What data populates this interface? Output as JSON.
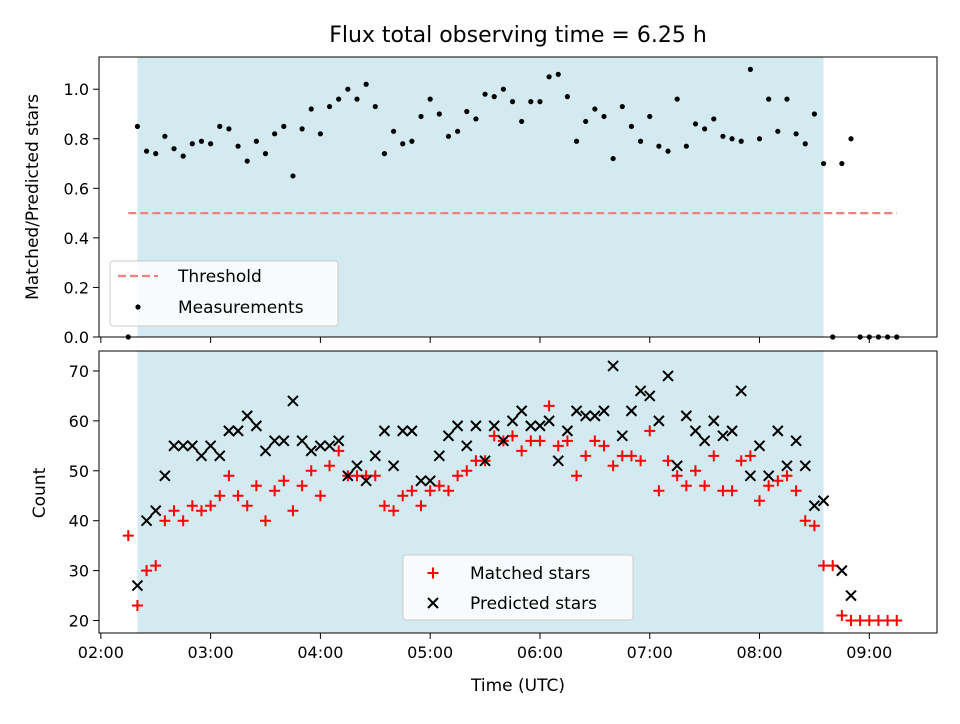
{
  "chart_data": [
    {
      "type": "scatter",
      "title": "Flux total observing time = 6.25 h",
      "xlabel": "",
      "ylabel": "Matched/Predicted stars",
      "xlim": [
        "01:59",
        "09:37"
      ],
      "ylim": [
        0,
        1.13
      ],
      "ytick_labels": [
        "0.0",
        "0.2",
        "0.4",
        "0.6",
        "0.8",
        "1.0"
      ],
      "yticks": [
        0,
        0.2,
        0.4,
        0.6,
        0.8,
        1.0
      ],
      "shaded_span": [
        "02:20",
        "08:35"
      ],
      "grid": false,
      "legend_position": "lower-left",
      "threshold": {
        "name": "Threshold",
        "value": 0.5,
        "x_range": [
          "02:15",
          "09:15"
        ],
        "color": "#f08080"
      },
      "series": [
        {
          "name": "Measurements",
          "color": "#000000",
          "points": [
            [
              "02:15",
              0.0
            ],
            [
              "02:20",
              0.85
            ],
            [
              "02:25",
              0.75
            ],
            [
              "02:30",
              0.74
            ],
            [
              "02:35",
              0.81
            ],
            [
              "02:40",
              0.76
            ],
            [
              "02:45",
              0.73
            ],
            [
              "02:50",
              0.78
            ],
            [
              "02:55",
              0.79
            ],
            [
              "03:00",
              0.78
            ],
            [
              "03:05",
              0.85
            ],
            [
              "03:10",
              0.84
            ],
            [
              "03:15",
              0.77
            ],
            [
              "03:20",
              0.71
            ],
            [
              "03:25",
              0.79
            ],
            [
              "03:30",
              0.74
            ],
            [
              "03:35",
              0.82
            ],
            [
              "03:40",
              0.85
            ],
            [
              "03:45",
              0.65
            ],
            [
              "03:50",
              0.84
            ],
            [
              "03:55",
              0.92
            ],
            [
              "04:00",
              0.82
            ],
            [
              "04:05",
              0.93
            ],
            [
              "04:10",
              0.96
            ],
            [
              "04:15",
              1.0
            ],
            [
              "04:20",
              0.96
            ],
            [
              "04:25",
              1.02
            ],
            [
              "04:30",
              0.93
            ],
            [
              "04:35",
              0.74
            ],
            [
              "04:40",
              0.83
            ],
            [
              "04:45",
              0.78
            ],
            [
              "04:50",
              0.79
            ],
            [
              "04:55",
              0.89
            ],
            [
              "05:00",
              0.96
            ],
            [
              "05:05",
              0.9
            ],
            [
              "05:10",
              0.81
            ],
            [
              "05:15",
              0.83
            ],
            [
              "05:20",
              0.91
            ],
            [
              "05:25",
              0.88
            ],
            [
              "05:30",
              0.98
            ],
            [
              "05:35",
              0.97
            ],
            [
              "05:40",
              1.0
            ],
            [
              "05:45",
              0.95
            ],
            [
              "05:50",
              0.87
            ],
            [
              "05:55",
              0.95
            ],
            [
              "06:00",
              0.95
            ],
            [
              "06:05",
              1.05
            ],
            [
              "06:10",
              1.06
            ],
            [
              "06:15",
              0.97
            ],
            [
              "06:20",
              0.79
            ],
            [
              "06:25",
              0.87
            ],
            [
              "06:30",
              0.92
            ],
            [
              "06:35",
              0.89
            ],
            [
              "06:40",
              0.72
            ],
            [
              "06:45",
              0.93
            ],
            [
              "06:50",
              0.85
            ],
            [
              "06:55",
              0.79
            ],
            [
              "07:00",
              0.89
            ],
            [
              "07:05",
              0.77
            ],
            [
              "07:10",
              0.75
            ],
            [
              "07:15",
              0.96
            ],
            [
              "07:20",
              0.77
            ],
            [
              "07:25",
              0.86
            ],
            [
              "07:30",
              0.84
            ],
            [
              "07:35",
              0.88
            ],
            [
              "07:40",
              0.81
            ],
            [
              "07:45",
              0.8
            ],
            [
              "07:50",
              0.79
            ],
            [
              "07:55",
              1.08
            ],
            [
              "08:00",
              0.8
            ],
            [
              "08:05",
              0.96
            ],
            [
              "08:10",
              0.83
            ],
            [
              "08:15",
              0.96
            ],
            [
              "08:20",
              0.82
            ],
            [
              "08:25",
              0.78
            ],
            [
              "08:30",
              0.9
            ],
            [
              "08:35",
              0.7
            ],
            [
              "08:40",
              0.0
            ],
            [
              "08:45",
              0.7
            ],
            [
              "08:50",
              0.8
            ],
            [
              "08:55",
              0.0
            ],
            [
              "09:00",
              0.0
            ],
            [
              "09:05",
              0.0
            ],
            [
              "09:10",
              0.0
            ],
            [
              "09:15",
              0.0
            ]
          ]
        }
      ]
    },
    {
      "type": "scatter",
      "title": "",
      "xlabel": "Time (UTC)",
      "ylabel": "Count",
      "xlim": [
        "01:59",
        "09:37"
      ],
      "ylim": [
        17.5,
        74
      ],
      "ytick_labels": [
        "20",
        "30",
        "40",
        "50",
        "60",
        "70"
      ],
      "yticks": [
        20,
        30,
        40,
        50,
        60,
        70
      ],
      "xtick_labels": [
        "02:00",
        "03:00",
        "04:00",
        "05:00",
        "06:00",
        "07:00",
        "08:00",
        "09:00"
      ],
      "xticks": [
        "02:00",
        "03:00",
        "04:00",
        "05:00",
        "06:00",
        "07:00",
        "08:00",
        "09:00"
      ],
      "shaded_span": [
        "02:20",
        "08:35"
      ],
      "grid": false,
      "legend_position": "lower-center",
      "series": [
        {
          "name": "Matched stars",
          "color": "#ff0000",
          "marker": "plus",
          "points": [
            [
              "02:15",
              37
            ],
            [
              "02:20",
              23
            ],
            [
              "02:25",
              30
            ],
            [
              "02:30",
              31
            ],
            [
              "02:35",
              40
            ],
            [
              "02:40",
              42
            ],
            [
              "02:45",
              40
            ],
            [
              "02:50",
              43
            ],
            [
              "02:55",
              42
            ],
            [
              "03:00",
              43
            ],
            [
              "03:05",
              45
            ],
            [
              "03:10",
              49
            ],
            [
              "03:15",
              45
            ],
            [
              "03:20",
              43
            ],
            [
              "03:25",
              47
            ],
            [
              "03:30",
              40
            ],
            [
              "03:35",
              46
            ],
            [
              "03:40",
              48
            ],
            [
              "03:45",
              42
            ],
            [
              "03:50",
              47
            ],
            [
              "03:55",
              50
            ],
            [
              "04:00",
              45
            ],
            [
              "04:05",
              51
            ],
            [
              "04:10",
              54
            ],
            [
              "04:15",
              49
            ],
            [
              "04:20",
              49
            ],
            [
              "04:25",
              49
            ],
            [
              "04:30",
              49
            ],
            [
              "04:35",
              43
            ],
            [
              "04:40",
              42
            ],
            [
              "04:45",
              45
            ],
            [
              "04:50",
              46
            ],
            [
              "04:55",
              43
            ],
            [
              "05:00",
              46
            ],
            [
              "05:05",
              47
            ],
            [
              "05:10",
              46
            ],
            [
              "05:15",
              49
            ],
            [
              "05:20",
              50
            ],
            [
              "05:25",
              52
            ],
            [
              "05:30",
              52
            ],
            [
              "05:35",
              57
            ],
            [
              "05:40",
              56
            ],
            [
              "05:45",
              57
            ],
            [
              "05:50",
              54
            ],
            [
              "05:55",
              56
            ],
            [
              "06:00",
              56
            ],
            [
              "06:05",
              63
            ],
            [
              "06:10",
              55
            ],
            [
              "06:15",
              56
            ],
            [
              "06:20",
              49
            ],
            [
              "06:25",
              53
            ],
            [
              "06:30",
              56
            ],
            [
              "06:35",
              55
            ],
            [
              "06:40",
              51
            ],
            [
              "06:45",
              53
            ],
            [
              "06:50",
              53
            ],
            [
              "06:55",
              52
            ],
            [
              "07:00",
              58
            ],
            [
              "07:05",
              46
            ],
            [
              "07:10",
              52
            ],
            [
              "07:15",
              49
            ],
            [
              "07:20",
              47
            ],
            [
              "07:25",
              50
            ],
            [
              "07:30",
              47
            ],
            [
              "07:35",
              53
            ],
            [
              "07:40",
              46
            ],
            [
              "07:45",
              46
            ],
            [
              "07:50",
              52
            ],
            [
              "07:55",
              53
            ],
            [
              "08:00",
              44
            ],
            [
              "08:05",
              47
            ],
            [
              "08:10",
              48
            ],
            [
              "08:15",
              49
            ],
            [
              "08:20",
              46
            ],
            [
              "08:25",
              40
            ],
            [
              "08:30",
              39
            ],
            [
              "08:35",
              31
            ],
            [
              "08:40",
              31
            ],
            [
              "08:45",
              21
            ],
            [
              "08:50",
              20
            ],
            [
              "08:55",
              20
            ],
            [
              "09:00",
              20
            ],
            [
              "09:05",
              20
            ],
            [
              "09:10",
              20
            ],
            [
              "09:15",
              20
            ]
          ]
        },
        {
          "name": "Predicted stars",
          "color": "#000000",
          "marker": "x",
          "points": [
            [
              "02:20",
              27
            ],
            [
              "02:25",
              40
            ],
            [
              "02:30",
              42
            ],
            [
              "02:35",
              49
            ],
            [
              "02:40",
              55
            ],
            [
              "02:45",
              55
            ],
            [
              "02:50",
              55
            ],
            [
              "02:55",
              53
            ],
            [
              "03:00",
              55
            ],
            [
              "03:05",
              53
            ],
            [
              "03:10",
              58
            ],
            [
              "03:15",
              58
            ],
            [
              "03:20",
              61
            ],
            [
              "03:25",
              59
            ],
            [
              "03:30",
              54
            ],
            [
              "03:35",
              56
            ],
            [
              "03:40",
              56
            ],
            [
              "03:45",
              64
            ],
            [
              "03:50",
              56
            ],
            [
              "03:55",
              54
            ],
            [
              "04:00",
              55
            ],
            [
              "04:05",
              55
            ],
            [
              "04:10",
              56
            ],
            [
              "04:15",
              49
            ],
            [
              "04:20",
              51
            ],
            [
              "04:25",
              48
            ],
            [
              "04:30",
              53
            ],
            [
              "04:35",
              58
            ],
            [
              "04:40",
              51
            ],
            [
              "04:45",
              58
            ],
            [
              "04:50",
              58
            ],
            [
              "04:55",
              48
            ],
            [
              "05:00",
              48
            ],
            [
              "05:05",
              53
            ],
            [
              "05:10",
              57
            ],
            [
              "05:15",
              59
            ],
            [
              "05:20",
              55
            ],
            [
              "05:25",
              59
            ],
            [
              "05:30",
              52
            ],
            [
              "05:35",
              59
            ],
            [
              "05:40",
              56
            ],
            [
              "05:45",
              60
            ],
            [
              "05:50",
              62
            ],
            [
              "05:55",
              59
            ],
            [
              "06:00",
              59
            ],
            [
              "06:05",
              60
            ],
            [
              "06:10",
              52
            ],
            [
              "06:15",
              58
            ],
            [
              "06:20",
              62
            ],
            [
              "06:25",
              61
            ],
            [
              "06:30",
              61
            ],
            [
              "06:35",
              62
            ],
            [
              "06:40",
              71
            ],
            [
              "06:45",
              57
            ],
            [
              "06:50",
              62
            ],
            [
              "06:55",
              66
            ],
            [
              "07:00",
              65
            ],
            [
              "07:05",
              60
            ],
            [
              "07:10",
              69
            ],
            [
              "07:15",
              51
            ],
            [
              "07:20",
              61
            ],
            [
              "07:25",
              58
            ],
            [
              "07:30",
              56
            ],
            [
              "07:35",
              60
            ],
            [
              "07:40",
              57
            ],
            [
              "07:45",
              58
            ],
            [
              "07:50",
              66
            ],
            [
              "07:55",
              49
            ],
            [
              "08:00",
              55
            ],
            [
              "08:05",
              49
            ],
            [
              "08:10",
              58
            ],
            [
              "08:15",
              51
            ],
            [
              "08:20",
              56
            ],
            [
              "08:25",
              51
            ],
            [
              "08:30",
              43
            ],
            [
              "08:35",
              44
            ],
            [
              "08:45",
              30
            ],
            [
              "08:50",
              25
            ]
          ]
        }
      ]
    }
  ],
  "shade_color": "#d4eaf1"
}
